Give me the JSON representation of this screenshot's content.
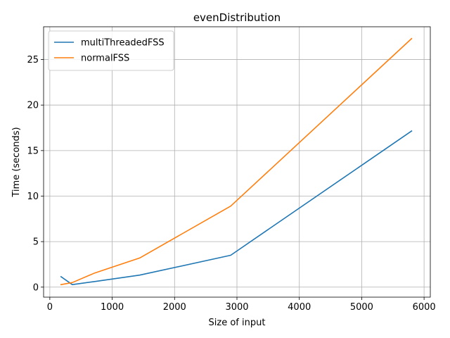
{
  "chart_data": {
    "type": "line",
    "title": "evenDistribution",
    "xlabel": "Size of input",
    "ylabel": "Time (seconds)",
    "xlim": [
      -100,
      6100
    ],
    "ylim": [
      -1.1,
      28.6
    ],
    "xticks": [
      0,
      1000,
      2000,
      3000,
      4000,
      5000,
      6000
    ],
    "yticks": [
      0,
      5,
      10,
      15,
      20,
      25
    ],
    "grid": true,
    "legend_position": "top-left",
    "series": [
      {
        "name": "multiThreadedFSS",
        "color": "#1f77b4",
        "x": [
          180,
          360,
          720,
          1440,
          2900,
          5800
        ],
        "y": [
          1.15,
          0.28,
          0.62,
          1.32,
          3.5,
          17.15
        ]
      },
      {
        "name": "normalFSS",
        "color": "#ff7f0e",
        "x": [
          180,
          360,
          720,
          1440,
          2900,
          5800
        ],
        "y": [
          0.28,
          0.5,
          1.55,
          3.2,
          8.9,
          27.3
        ]
      }
    ]
  }
}
